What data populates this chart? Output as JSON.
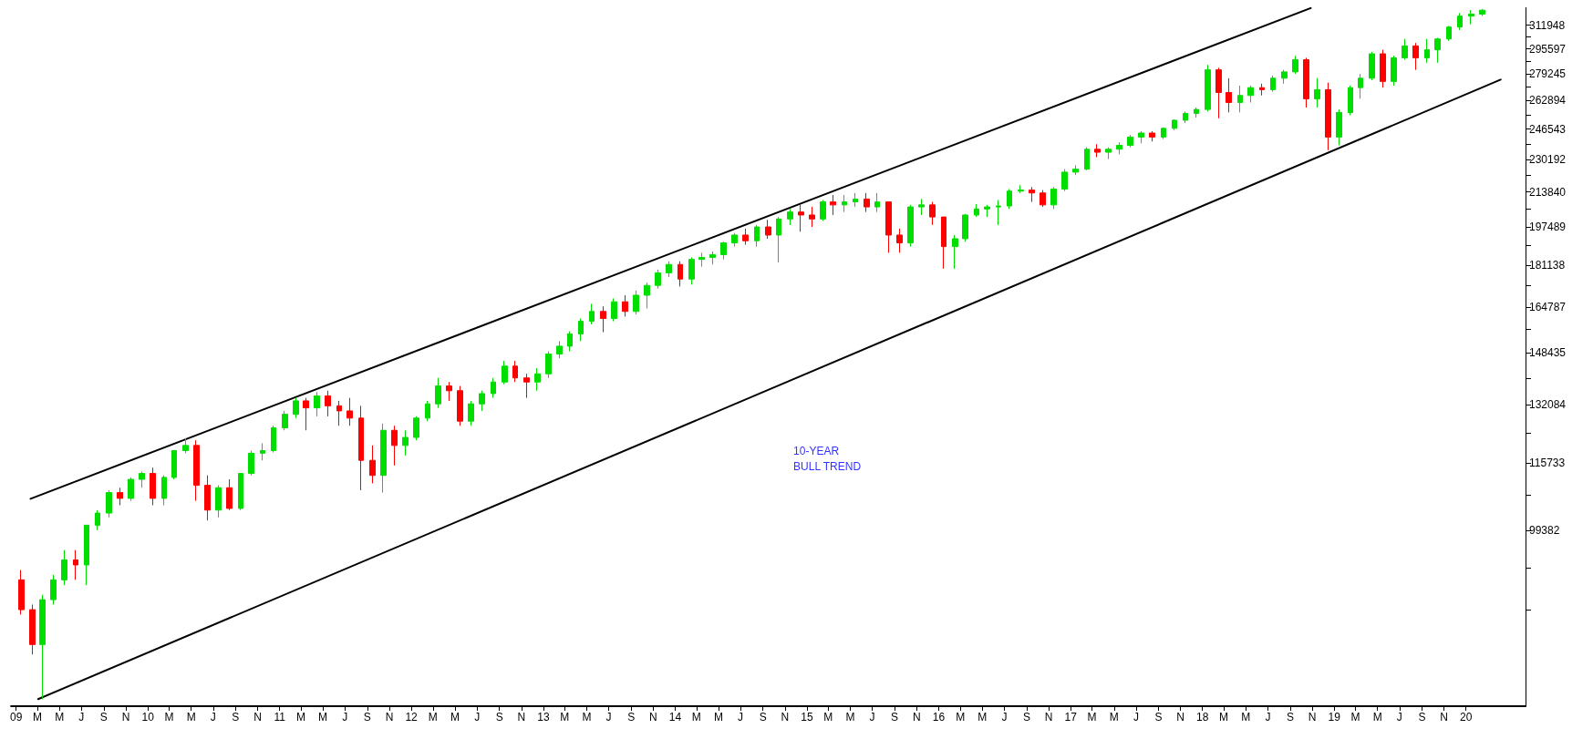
{
  "chart_data": {
    "type": "candlestick",
    "log": "y",
    "xlim": [
      "2008-12-18",
      "2020-06-14"
    ],
    "ylim": [
      66700,
      324800
    ],
    "xticks": [
      {
        "value": "2009-01",
        "label": "09"
      },
      {
        "value": "2009-03",
        "label": "M"
      },
      {
        "value": "2009-05",
        "label": "M"
      },
      {
        "value": "2009-07",
        "label": "J"
      },
      {
        "value": "2009-09",
        "label": "S"
      },
      {
        "value": "2009-11",
        "label": "N"
      },
      {
        "value": "2010-01",
        "label": "10"
      },
      {
        "value": "2010-03",
        "label": "M"
      },
      {
        "value": "2010-05",
        "label": "M"
      },
      {
        "value": "2010-07",
        "label": "J"
      },
      {
        "value": "2010-09",
        "label": "S"
      },
      {
        "value": "2010-11",
        "label": "N"
      },
      {
        "value": "2011-01",
        "label": "11"
      },
      {
        "value": "2011-03",
        "label": "M"
      },
      {
        "value": "2011-05",
        "label": "M"
      },
      {
        "value": "2011-07",
        "label": "J"
      },
      {
        "value": "2011-09",
        "label": "S"
      },
      {
        "value": "2011-11",
        "label": "N"
      },
      {
        "value": "2012-01",
        "label": "12"
      },
      {
        "value": "2012-03",
        "label": "M"
      },
      {
        "value": "2012-05",
        "label": "M"
      },
      {
        "value": "2012-07",
        "label": "J"
      },
      {
        "value": "2012-09",
        "label": "S"
      },
      {
        "value": "2012-11",
        "label": "N"
      },
      {
        "value": "2013-01",
        "label": "13"
      },
      {
        "value": "2013-03",
        "label": "M"
      },
      {
        "value": "2013-05",
        "label": "M"
      },
      {
        "value": "2013-07",
        "label": "J"
      },
      {
        "value": "2013-09",
        "label": "S"
      },
      {
        "value": "2013-11",
        "label": "N"
      },
      {
        "value": "2014-01",
        "label": "14"
      },
      {
        "value": "2014-03",
        "label": "M"
      },
      {
        "value": "2014-05",
        "label": "M"
      },
      {
        "value": "2014-07",
        "label": "J"
      },
      {
        "value": "2014-09",
        "label": "S"
      },
      {
        "value": "2014-11",
        "label": "N"
      },
      {
        "value": "2015-01",
        "label": "15"
      },
      {
        "value": "2015-03",
        "label": "M"
      },
      {
        "value": "2015-05",
        "label": "M"
      },
      {
        "value": "2015-07",
        "label": "J"
      },
      {
        "value": "2015-09",
        "label": "S"
      },
      {
        "value": "2015-11",
        "label": "N"
      },
      {
        "value": "2016-01",
        "label": "16"
      },
      {
        "value": "2016-03",
        "label": "M"
      },
      {
        "value": "2016-05",
        "label": "M"
      },
      {
        "value": "2016-07",
        "label": "J"
      },
      {
        "value": "2016-09",
        "label": "S"
      },
      {
        "value": "2016-11",
        "label": "N"
      },
      {
        "value": "2017-01",
        "label": "17"
      },
      {
        "value": "2017-03",
        "label": "M"
      },
      {
        "value": "2017-05",
        "label": "M"
      },
      {
        "value": "2017-07",
        "label": "J"
      },
      {
        "value": "2017-09",
        "label": "S"
      },
      {
        "value": "2017-11",
        "label": "N"
      },
      {
        "value": "2018-01",
        "label": "18"
      },
      {
        "value": "2018-03",
        "label": "M"
      },
      {
        "value": "2018-05",
        "label": "M"
      },
      {
        "value": "2018-07",
        "label": "J"
      },
      {
        "value": "2018-09",
        "label": "S"
      },
      {
        "value": "2018-11",
        "label": "N"
      },
      {
        "value": "2019-01",
        "label": "19"
      },
      {
        "value": "2019-03",
        "label": "M"
      },
      {
        "value": "2019-05",
        "label": "M"
      },
      {
        "value": "2019-07",
        "label": "J"
      },
      {
        "value": "2019-09",
        "label": "S"
      },
      {
        "value": "2019-11",
        "label": "N"
      },
      {
        "value": "2020-01",
        "label": "20"
      }
    ],
    "yticks": [
      {
        "value": 83031,
        "label": null
      },
      {
        "value": 91207,
        "label": null
      },
      99382,
      {
        "value": 107558,
        "label": null
      },
      115733,
      {
        "value": 123909,
        "label": null
      },
      132084,
      {
        "value": 140260,
        "label": null
      },
      148435,
      {
        "value": 156611,
        "label": null
      },
      164787,
      {
        "value": 172963,
        "label": null
      },
      181138,
      {
        "value": 189315,
        "label": null
      },
      197489,
      {
        "value": 205665,
        "label": null
      },
      213840,
      {
        "value": 222016,
        "label": null
      },
      230192,
      {
        "value": 238368,
        "label": null
      },
      246543,
      {
        "value": 254719,
        "label": null
      },
      262894,
      {
        "value": 271070,
        "label": null
      },
      279245,
      {
        "value": 287421,
        "label": null
      },
      295597,
      {
        "value": 303773,
        "label": null
      },
      311948
    ],
    "annotations": [
      "10-YEAR\nBULL TREND"
    ],
    "series": [
      {
        "x": [
          "2009-01-15",
          "2009-02-15",
          "2009-03-15",
          "2009-04-15",
          "2009-05-15",
          "2009-06-15",
          "2009-07-15",
          "2009-08-15",
          "2009-09-15",
          "2009-10-15",
          "2009-11-15",
          "2009-12-15",
          "2010-01-15",
          "2010-02-15",
          "2010-03-15",
          "2010-04-15",
          "2010-05-15",
          "2010-06-15",
          "2010-07-15",
          "2010-08-15",
          "2010-09-15",
          "2010-10-15",
          "2010-11-15",
          "2010-12-15",
          "2011-01-15",
          "2011-02-15",
          "2011-03-15",
          "2011-04-15",
          "2011-05-15",
          "2011-06-15",
          "2011-07-15",
          "2011-08-15",
          "2011-09-15",
          "2011-10-15",
          "2011-11-15",
          "2011-12-15",
          "2012-01-15",
          "2012-02-15",
          "2012-03-15",
          "2012-04-15",
          "2012-05-15",
          "2012-06-15",
          "2012-07-15",
          "2012-08-15",
          "2012-09-15",
          "2012-10-15",
          "2012-11-15",
          "2012-12-15",
          "2013-01-15",
          "2013-02-15",
          "2013-03-15",
          "2013-04-15",
          "2013-05-15",
          "2013-06-15",
          "2013-07-15",
          "2013-08-15",
          "2013-09-15",
          "2013-10-15",
          "2013-11-15",
          "2013-12-15",
          "2014-01-15",
          "2014-02-15",
          "2014-03-15",
          "2014-04-15",
          "2014-05-15",
          "2014-06-15",
          "2014-07-15",
          "2014-08-15",
          "2014-09-15",
          "2014-10-15",
          "2014-11-15",
          "2014-12-15",
          "2015-01-15",
          "2015-02-15",
          "2015-03-15",
          "2015-04-15",
          "2015-05-15",
          "2015-06-15",
          "2015-07-15",
          "2015-08-15",
          "2015-09-15",
          "2015-10-15",
          "2015-11-15",
          "2015-12-15",
          "2016-01-15",
          "2016-02-15",
          "2016-03-15",
          "2016-04-15",
          "2016-05-15",
          "2016-06-15",
          "2016-07-15",
          "2016-08-15",
          "2016-09-15",
          "2016-10-15",
          "2016-11-15",
          "2016-12-15",
          "2017-01-15",
          "2017-02-15",
          "2017-03-15",
          "2017-04-15",
          "2017-05-15",
          "2017-06-15",
          "2017-07-15",
          "2017-08-15",
          "2017-09-15",
          "2017-10-15",
          "2017-11-15",
          "2017-12-15",
          "2018-01-15",
          "2018-02-15",
          "2018-03-15",
          "2018-04-15",
          "2018-05-15",
          "2018-06-15",
          "2018-07-15",
          "2018-08-15",
          "2018-09-15",
          "2018-10-15",
          "2018-11-15",
          "2018-12-15",
          "2019-01-15",
          "2019-02-15",
          "2019-03-15",
          "2019-04-15",
          "2019-05-15",
          "2019-06-15",
          "2019-07-15",
          "2019-08-15",
          "2019-09-15",
          "2019-10-15",
          "2019-11-15",
          "2019-12-15",
          "2020-01-15",
          "2020-02-15"
        ],
        "ohlc": [
          [
            88800,
            90800,
            82100,
            83000
          ],
          [
            83000,
            83960,
            75000,
            76700
          ],
          [
            76700,
            85850,
            67780,
            84900
          ],
          [
            84900,
            89800,
            83960,
            88800
          ],
          [
            88800,
            95000,
            87780,
            92900
          ],
          [
            92900,
            95000,
            88800,
            91850
          ],
          [
            91850,
            100510,
            87780,
            100510
          ],
          [
            100500,
            103960,
            99400,
            103300
          ],
          [
            103300,
            108770,
            102300,
            108200
          ],
          [
            108200,
            109400,
            105140,
            106800
          ],
          [
            106800,
            112000,
            106200,
            111500
          ],
          [
            111500,
            113500,
            109400,
            113000
          ],
          [
            113000,
            114500,
            105140,
            106800
          ],
          [
            106800,
            112500,
            105140,
            112000
          ],
          [
            112000,
            119000,
            111500,
            119000
          ],
          [
            119000,
            122400,
            118300,
            120400
          ],
          [
            120400,
            121800,
            106200,
            110000
          ],
          [
            110000,
            112500,
            101600,
            104000
          ],
          [
            104000,
            110000,
            102300,
            109400
          ],
          [
            109400,
            111500,
            104000,
            104400
          ],
          [
            104400,
            113000,
            104000,
            113000
          ],
          [
            113000,
            119000,
            112500,
            118300
          ],
          [
            118300,
            121000,
            116400,
            119000
          ],
          [
            119000,
            125900,
            118500,
            125300
          ],
          [
            125300,
            130200,
            124600,
            129200
          ],
          [
            129200,
            134100,
            128100,
            133200
          ],
          [
            133200,
            134100,
            124600,
            131100
          ],
          [
            131100,
            135900,
            128600,
            134700
          ],
          [
            134700,
            136300,
            128600,
            131700
          ],
          [
            131700,
            133200,
            125900,
            130200
          ],
          [
            130200,
            134100,
            125900,
            128100
          ],
          [
            128100,
            131700,
            108800,
            116400
          ],
          [
            116400,
            120400,
            110500,
            112500
          ],
          [
            112500,
            126500,
            108200,
            124600
          ],
          [
            124600,
            125900,
            115060,
            120400
          ],
          [
            120400,
            124600,
            117700,
            122600
          ],
          [
            122600,
            128600,
            121800,
            128100
          ],
          [
            128100,
            133200,
            127200,
            132300
          ],
          [
            132300,
            140300,
            131100,
            137760
          ],
          [
            137760,
            139000,
            133200,
            136300
          ],
          [
            136300,
            137760,
            125900,
            127200
          ],
          [
            127200,
            133200,
            125900,
            132300
          ],
          [
            132300,
            136300,
            130200,
            135400
          ],
          [
            135400,
            140300,
            134100,
            139000
          ],
          [
            139000,
            145800,
            138300,
            144100
          ],
          [
            144100,
            145800,
            139000,
            140300
          ],
          [
            140300,
            141600,
            134100,
            139000
          ],
          [
            139000,
            143400,
            136300,
            141600
          ],
          [
            141600,
            149000,
            140300,
            148100
          ],
          [
            148100,
            152500,
            146700,
            150760
          ],
          [
            150760,
            155900,
            149000,
            155000
          ],
          [
            155000,
            160500,
            152500,
            159500
          ],
          [
            159500,
            165900,
            158400,
            163100
          ],
          [
            163100,
            165000,
            155600,
            160500
          ],
          [
            160500,
            168000,
            159500,
            166700
          ],
          [
            166700,
            169200,
            161200,
            163100
          ],
          [
            163100,
            171000,
            162000,
            169200
          ],
          [
            169200,
            174100,
            164200,
            173000
          ],
          [
            173000,
            179300,
            171800,
            178000
          ],
          [
            178000,
            182700,
            176300,
            181400
          ],
          [
            181400,
            182700,
            172600,
            175500
          ],
          [
            175500,
            184300,
            173300,
            183500
          ],
          [
            183500,
            186300,
            180500,
            184300
          ],
          [
            184300,
            186800,
            181400,
            185500
          ],
          [
            185500,
            191000,
            183500,
            190500
          ],
          [
            190500,
            194800,
            188900,
            193900
          ],
          [
            193900,
            196700,
            189700,
            191400
          ],
          [
            191400,
            198400,
            188900,
            197500
          ],
          [
            197500,
            200700,
            192300,
            193900
          ],
          [
            193900,
            202000,
            182200,
            201100
          ],
          [
            201100,
            205700,
            198400,
            204300
          ],
          [
            204300,
            207600,
            195400,
            202900
          ],
          [
            202900,
            206650,
            197500,
            201100
          ],
          [
            201100,
            209900,
            200200,
            209000
          ],
          [
            209000,
            212300,
            202900,
            207600
          ],
          [
            207600,
            212300,
            204300,
            209000
          ],
          [
            209000,
            213300,
            206650,
            210400
          ],
          [
            210400,
            213300,
            204300,
            206650
          ],
          [
            206650,
            213300,
            204300,
            209000
          ],
          [
            209000,
            209000,
            186300,
            193900
          ],
          [
            193900,
            196700,
            186300,
            190500
          ],
          [
            190500,
            207600,
            188900,
            206650
          ],
          [
            206650,
            210400,
            202900,
            207600
          ],
          [
            207600,
            209000,
            198400,
            202000
          ],
          [
            202000,
            202000,
            179700,
            188900
          ],
          [
            188900,
            193900,
            179700,
            192300
          ],
          [
            192300,
            203400,
            191000,
            202900
          ],
          [
            202900,
            208000,
            202000,
            205700
          ],
          [
            205700,
            207600,
            202000,
            206650
          ],
          [
            206650,
            209900,
            198400,
            207100
          ],
          [
            207100,
            215200,
            205700,
            214200
          ],
          [
            214200,
            217100,
            213300,
            214700
          ],
          [
            214700,
            216200,
            209000,
            213300
          ],
          [
            213300,
            214700,
            206650,
            207600
          ],
          [
            207600,
            216200,
            205700,
            215200
          ],
          [
            215200,
            225100,
            214200,
            223600
          ],
          [
            223600,
            227100,
            222100,
            225100
          ],
          [
            225100,
            236550,
            224600,
            235500
          ],
          [
            235500,
            238200,
            231300,
            233900
          ],
          [
            233900,
            236550,
            230300,
            235500
          ],
          [
            235500,
            239200,
            232800,
            237600
          ],
          [
            237600,
            243200,
            236550,
            242100
          ],
          [
            242100,
            245300,
            238700,
            244300
          ],
          [
            244300,
            245300,
            239700,
            242100
          ],
          [
            242100,
            247440,
            241000,
            246900
          ],
          [
            246900,
            252000,
            245900,
            251500
          ],
          [
            251500,
            256500,
            249900,
            255400
          ],
          [
            255400,
            258840,
            253000,
            257700
          ],
          [
            257700,
            285100,
            256500,
            281900
          ],
          [
            281900,
            283240,
            252600,
            267800
          ],
          [
            267800,
            276600,
            256000,
            261800
          ],
          [
            261800,
            272000,
            256000,
            266000
          ],
          [
            266000,
            272000,
            261800,
            270770
          ],
          [
            270770,
            273200,
            266000,
            269500
          ],
          [
            269500,
            278200,
            268300,
            276600
          ],
          [
            276600,
            281900,
            273200,
            280600
          ],
          [
            280600,
            291000,
            279300,
            288400
          ],
          [
            288400,
            289700,
            258840,
            264000
          ],
          [
            264000,
            276600,
            258840,
            269500
          ],
          [
            269500,
            273800,
            235000,
            242100
          ],
          [
            242100,
            257700,
            237600,
            255900
          ],
          [
            255900,
            272000,
            254300,
            270770
          ],
          [
            270770,
            279300,
            264000,
            276600
          ],
          [
            276600,
            293600,
            275400,
            292300
          ],
          [
            292300,
            295000,
            270770,
            274600
          ],
          [
            274600,
            291000,
            272000,
            289700
          ],
          [
            289700,
            302300,
            288400,
            297600
          ],
          [
            297600,
            299600,
            281900,
            289700
          ],
          [
            289700,
            302300,
            286500,
            295000
          ],
          [
            295000,
            303100,
            286500,
            302300
          ],
          [
            302300,
            311400,
            301100,
            310600
          ],
          [
            310600,
            320600,
            308500,
            318400
          ],
          [
            318400,
            322700,
            312500,
            319800
          ],
          [
            319800,
            323500,
            318400,
            322700
          ]
        ],
        "colors": [
          "#ff0000",
          "#ff0000",
          "#00dd00",
          "#00dd00",
          "#00dd00",
          "#ff0000",
          "#00dd00",
          "#00dd00",
          "#00dd00",
          "#ff0000",
          "#00dd00",
          "#00dd00",
          "#ff0000",
          "#00dd00",
          "#00dd00",
          "#00dd00",
          "#ff0000",
          "#ff0000",
          "#00dd00",
          "#ff0000",
          "#00dd00",
          "#00dd00",
          "#00dd00",
          "#00dd00",
          "#00dd00",
          "#00dd00",
          "#ff0000",
          "#00dd00",
          "#ff0000",
          "#ff0000",
          "#ff0000",
          "#ff0000",
          "#ff0000",
          "#00dd00",
          "#ff0000",
          "#00dd00",
          "#00dd00",
          "#00dd00",
          "#00dd00",
          "#ff0000",
          "#ff0000",
          "#00dd00",
          "#00dd00",
          "#00dd00",
          "#00dd00",
          "#ff0000",
          "#ff0000",
          "#00dd00",
          "#00dd00",
          "#00dd00",
          "#00dd00",
          "#00dd00",
          "#00dd00",
          "#ff0000",
          "#00dd00",
          "#ff0000",
          "#00dd00",
          "#00dd00",
          "#00dd00",
          "#00dd00",
          "#ff0000",
          "#00dd00",
          "#00dd00",
          "#00dd00",
          "#00dd00",
          "#00dd00",
          "#ff0000",
          "#00dd00",
          "#ff0000",
          "#00dd00",
          "#00dd00",
          "#ff0000",
          "#ff0000",
          "#00dd00",
          "#ff0000",
          "#00dd00",
          "#00dd00",
          "#ff0000",
          "#00dd00",
          "#ff0000",
          "#ff0000",
          "#00dd00",
          "#00dd00",
          "#ff0000",
          "#ff0000",
          "#00dd00",
          "#00dd00",
          "#00dd00",
          "#00dd00",
          "#00dd00",
          "#00dd00",
          "#00dd00",
          "#ff0000",
          "#ff0000",
          "#00dd00",
          "#00dd00",
          "#00dd00",
          "#00dd00",
          "#ff0000",
          "#00dd00",
          "#00dd00",
          "#00dd00",
          "#00dd00",
          "#ff0000",
          "#00dd00",
          "#00dd00",
          "#00dd00",
          "#00dd00",
          "#00dd00",
          "#ff0000",
          "#ff0000",
          "#00dd00",
          "#00dd00",
          "#ff0000",
          "#00dd00",
          "#00dd00",
          "#00dd00",
          "#ff0000",
          "#00dd00",
          "#ff0000",
          "#00dd00",
          "#00dd00",
          "#00dd00",
          "#00dd00",
          "#ff0000",
          "#00dd00",
          "#00dd00",
          "#ff0000",
          "#00dd00",
          "#00dd00",
          "#00dd00",
          "#00dd00",
          "#00dd00",
          "#00dd00"
        ]
      },
      {
        "type": "line",
        "x": [
          "2009-02-10",
          "2018-10-28"
        ],
        "values": [
          106700,
          324200
        ],
        "color": "#000000"
      },
      {
        "type": "line",
        "x": [
          "2009-03-03",
          "2020-04-06"
        ],
        "values": [
          67780,
          275700
        ],
        "color": "#000000"
      }
    ]
  }
}
